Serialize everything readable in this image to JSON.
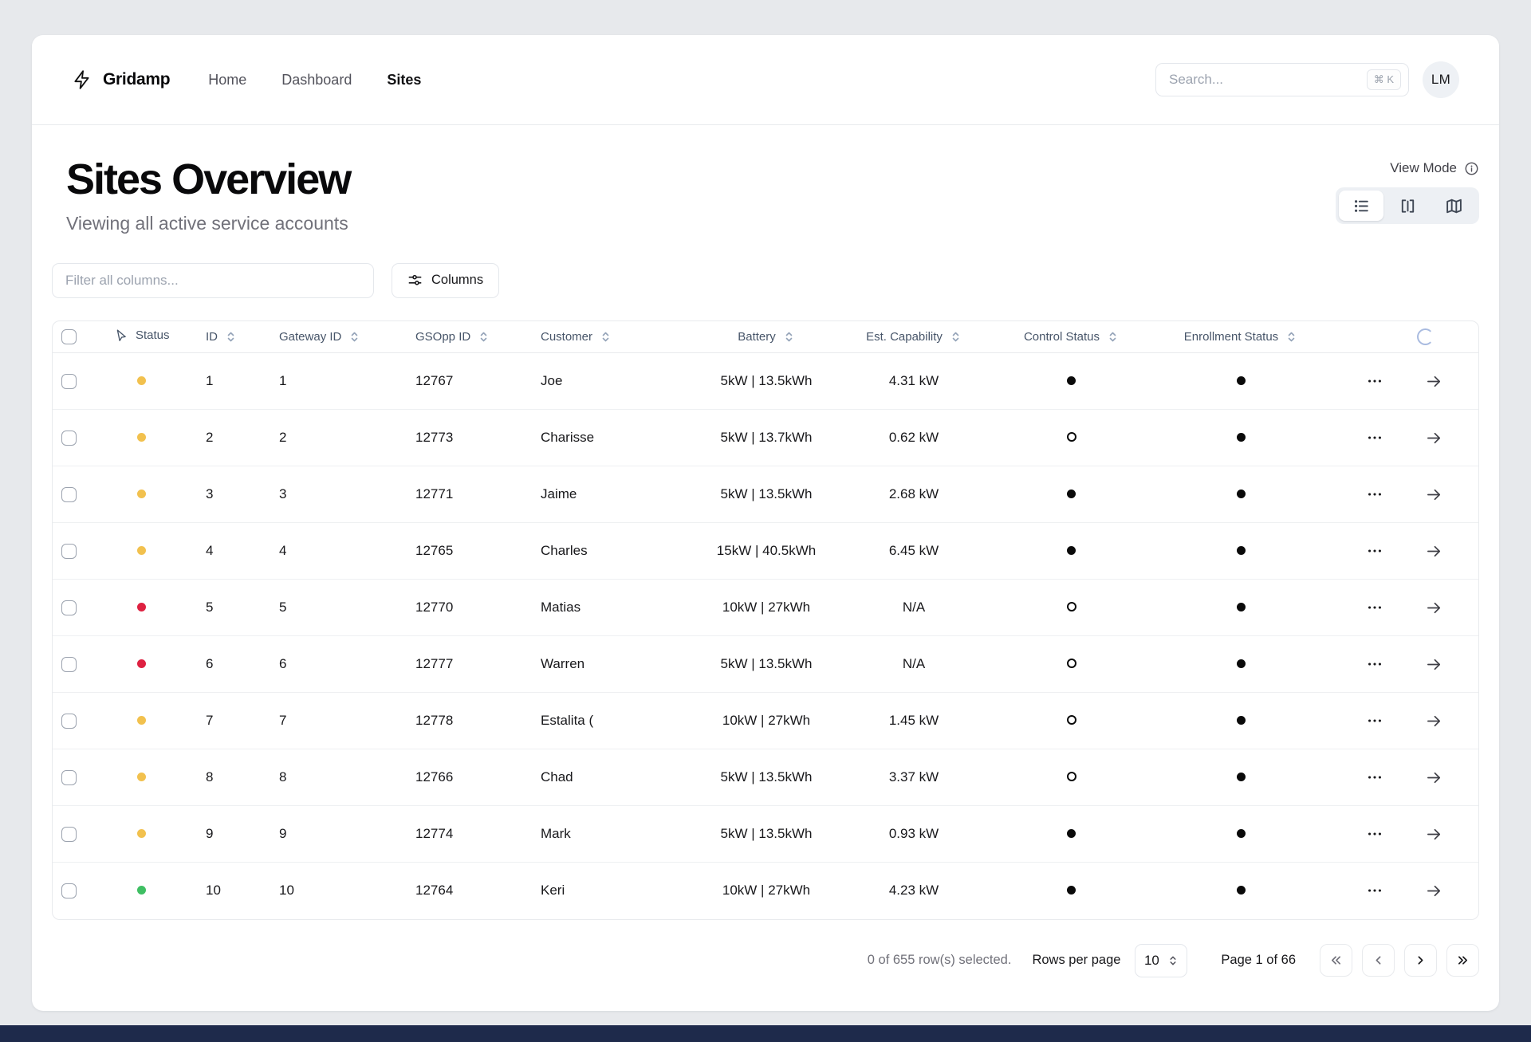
{
  "brand": {
    "name": "Gridamp",
    "icon": "zap-icon"
  },
  "nav": {
    "items": [
      {
        "label": "Home"
      },
      {
        "label": "Dashboard"
      },
      {
        "label": "Sites",
        "active": true
      }
    ]
  },
  "search": {
    "placeholder": "Search...",
    "shortcut": "⌘ K"
  },
  "user": {
    "initials": "LM"
  },
  "page": {
    "title": "Sites Overview",
    "subtitle": "Viewing all active service accounts"
  },
  "view_mode": {
    "label": "View Mode",
    "options": [
      "list-icon",
      "split-view-icon",
      "map-icon"
    ],
    "active": "list-icon"
  },
  "toolbar": {
    "filter_placeholder": "Filter all columns...",
    "columns_button": "Columns"
  },
  "table": {
    "columns": [
      "Status",
      "ID",
      "Gateway ID",
      "GSOpp ID",
      "Customer",
      "Battery",
      "Est. Capability",
      "Control Status",
      "Enrollment Status"
    ],
    "rows": [
      {
        "status": "yellow",
        "id": "1",
        "gateway_id": "1",
        "gsopp_id": "12767",
        "customer": "Joe",
        "battery": "5kW | 13.5kWh",
        "est_capability": "4.31 kW",
        "control_status": "filled",
        "enrollment_status": "filled"
      },
      {
        "status": "yellow",
        "id": "2",
        "gateway_id": "2",
        "gsopp_id": "12773",
        "customer": "Charisse",
        "battery": "5kW | 13.7kWh",
        "est_capability": "0.62 kW",
        "control_status": "hollow",
        "enrollment_status": "filled"
      },
      {
        "status": "yellow",
        "id": "3",
        "gateway_id": "3",
        "gsopp_id": "12771",
        "customer": "Jaime",
        "battery": "5kW | 13.5kWh",
        "est_capability": "2.68 kW",
        "control_status": "filled",
        "enrollment_status": "filled"
      },
      {
        "status": "yellow",
        "id": "4",
        "gateway_id": "4",
        "gsopp_id": "12765",
        "customer": "Charles",
        "battery": "15kW | 40.5kWh",
        "est_capability": "6.45 kW",
        "control_status": "filled",
        "enrollment_status": "filled"
      },
      {
        "status": "red",
        "id": "5",
        "gateway_id": "5",
        "gsopp_id": "12770",
        "customer": "Matias",
        "battery": "10kW | 27kWh",
        "est_capability": "N/A",
        "control_status": "hollow",
        "enrollment_status": "filled"
      },
      {
        "status": "red",
        "id": "6",
        "gateway_id": "6",
        "gsopp_id": "12777",
        "customer": "Warren",
        "battery": "5kW | 13.5kWh",
        "est_capability": "N/A",
        "control_status": "hollow",
        "enrollment_status": "filled"
      },
      {
        "status": "yellow",
        "id": "7",
        "gateway_id": "7",
        "gsopp_id": "12778",
        "customer": "Estalita (",
        "battery": "10kW | 27kWh",
        "est_capability": "1.45 kW",
        "control_status": "hollow",
        "enrollment_status": "filled"
      },
      {
        "status": "yellow",
        "id": "8",
        "gateway_id": "8",
        "gsopp_id": "12766",
        "customer": "Chad",
        "battery": "5kW | 13.5kWh",
        "est_capability": "3.37 kW",
        "control_status": "hollow",
        "enrollment_status": "filled"
      },
      {
        "status": "yellow",
        "id": "9",
        "gateway_id": "9",
        "gsopp_id": "12774",
        "customer": "Mark",
        "battery": "5kW | 13.5kWh",
        "est_capability": "0.93 kW",
        "control_status": "filled",
        "enrollment_status": "filled"
      },
      {
        "status": "green",
        "id": "10",
        "gateway_id": "10",
        "gsopp_id": "12764",
        "customer": "Keri",
        "battery": "10kW | 27kWh",
        "est_capability": "4.23 kW",
        "control_status": "filled",
        "enrollment_status": "filled"
      }
    ]
  },
  "footer": {
    "selected_text": "0 of 655 row(s) selected.",
    "rows_per_page_label": "Rows per page",
    "rows_per_page_value": "10",
    "page_text": "Page 1 of 66"
  },
  "colors": {
    "status_yellow": "#F2C14E",
    "status_red": "#DE2141",
    "status_green": "#3FBF63",
    "spinner": "#A9BBE0",
    "bottom_bar": "#1E2A4B"
  }
}
